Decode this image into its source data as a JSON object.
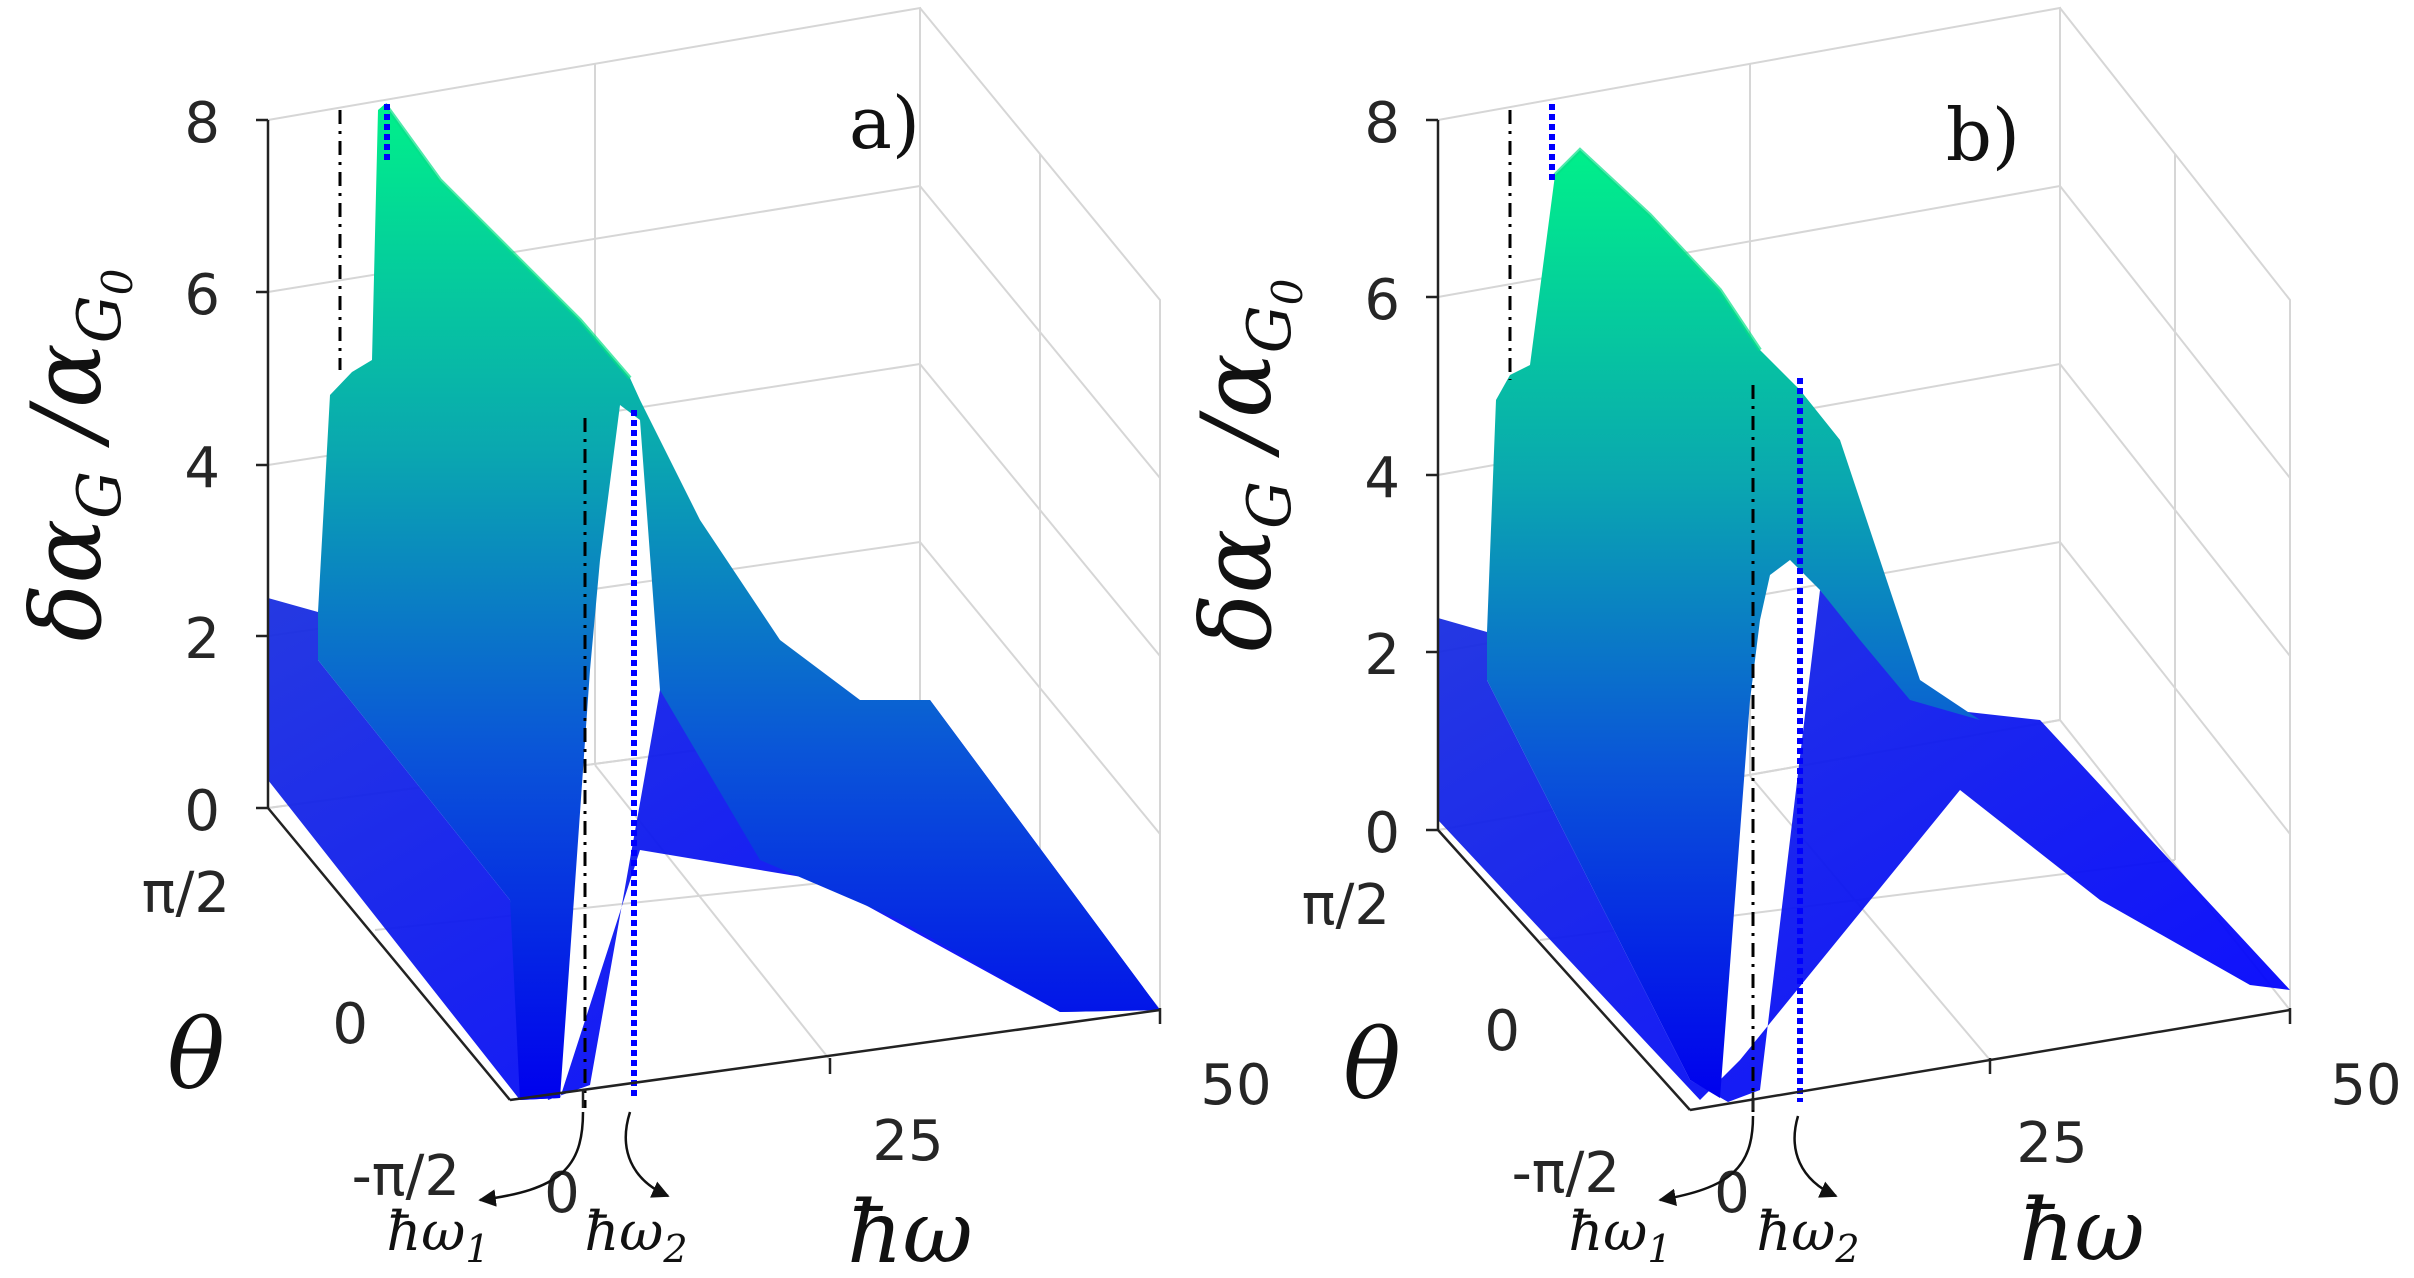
{
  "chart_data": [
    {
      "type": "surface",
      "panel_label": "a)",
      "zlabel": "δα_G / α_G0",
      "xlabel": "ħω",
      "ylabel": "θ",
      "z_ticks": [
        "0",
        "2",
        "4",
        "6",
        "8"
      ],
      "zlim": [
        0,
        8
      ],
      "theta_ticks": [
        "π/2",
        "0",
        "-π/2"
      ],
      "omega_ticks": [
        "0",
        "25",
        "50"
      ],
      "xlim": [
        0,
        50
      ],
      "markers": [
        {
          "name": "ħω1",
          "sub": "1",
          "omega": 3.5,
          "style": "dash-dot",
          "color": "#000000"
        },
        {
          "name": "ħω2",
          "sub": "2",
          "omega": 6.5,
          "style": "dotted",
          "color": "#0000ff"
        }
      ],
      "profile_theta_minus_pi2": [
        [
          0,
          0
        ],
        [
          3,
          0
        ],
        [
          3.5,
          1.6
        ],
        [
          4.5,
          1.4
        ],
        [
          6.3,
          2.0
        ],
        [
          6.8,
          4.7
        ],
        [
          10,
          3.6
        ],
        [
          15,
          2.2
        ],
        [
          20,
          1.2
        ],
        [
          25,
          0.6
        ],
        [
          35,
          0.25
        ],
        [
          50,
          0.1
        ]
      ],
      "profile_theta_plus_pi2": [
        [
          0,
          2.4
        ],
        [
          3,
          2.0
        ],
        [
          3.5,
          5.2
        ],
        [
          4.5,
          5.0
        ],
        [
          6.3,
          6.0
        ],
        [
          6.8,
          8.0
        ],
        [
          10,
          7.2
        ],
        [
          15,
          5.8
        ],
        [
          20,
          5.0
        ],
        [
          25,
          4.7
        ]
      ]
    },
    {
      "type": "surface",
      "panel_label": "b)",
      "zlabel": "δα_G / α_G0",
      "xlabel": "ħω",
      "ylabel": "θ",
      "z_ticks": [
        "0",
        "2",
        "4",
        "6",
        "8"
      ],
      "zlim": [
        0,
        8
      ],
      "theta_ticks": [
        "π/2",
        "0",
        "-π/2"
      ],
      "omega_ticks": [
        "0",
        "25",
        "50"
      ],
      "xlim": [
        0,
        50
      ],
      "markers": [
        {
          "name": "ħω1",
          "sub": "1",
          "omega": 3.5,
          "style": "dash-dot",
          "color": "#000000"
        },
        {
          "name": "ħω2",
          "sub": "2",
          "omega": 6.5,
          "style": "dotted",
          "color": "#0000ff"
        }
      ],
      "profile_theta_minus_pi2": [
        [
          0,
          0
        ],
        [
          3,
          0
        ],
        [
          3.5,
          2.0
        ],
        [
          4.5,
          2.0
        ],
        [
          6.3,
          2.4
        ],
        [
          6.8,
          4.4
        ],
        [
          10,
          3.0
        ],
        [
          15,
          1.6
        ],
        [
          20,
          0.9
        ],
        [
          25,
          0.5
        ],
        [
          35,
          0.2
        ],
        [
          50,
          0.1
        ]
      ],
      "profile_theta_plus_pi2": [
        [
          0,
          2.4
        ],
        [
          3,
          2.1
        ],
        [
          3.5,
          4.8
        ],
        [
          4.5,
          5.4
        ],
        [
          6.3,
          7.2
        ],
        [
          6.8,
          7.6
        ],
        [
          10,
          6.8
        ],
        [
          15,
          5.6
        ],
        [
          20,
          4.9
        ],
        [
          25,
          4.6
        ]
      ]
    }
  ]
}
